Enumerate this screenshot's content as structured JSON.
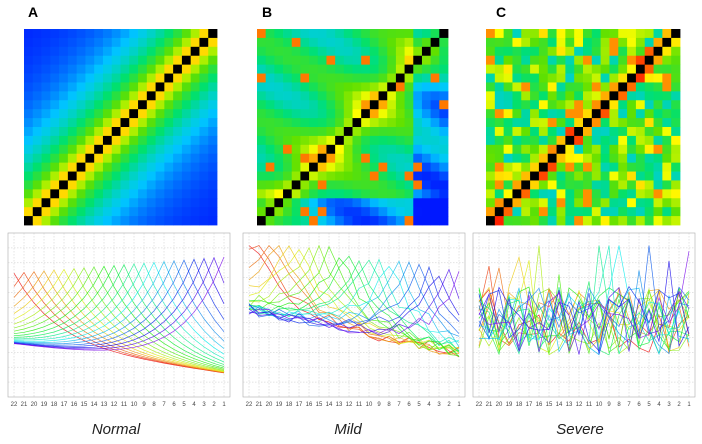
{
  "panels": [
    {
      "letter": "A",
      "caption": "Normal",
      "pattern": "normal"
    },
    {
      "letter": "B",
      "caption": "Mild",
      "pattern": "mild"
    },
    {
      "letter": "C",
      "caption": "Severe",
      "pattern": "severe"
    }
  ],
  "axis_ticks": [
    "22",
    "21",
    "20",
    "19",
    "18",
    "17",
    "16",
    "15",
    "14",
    "13",
    "12",
    "11",
    "10",
    "9",
    "8",
    "7",
    "6",
    "5",
    "4",
    "3",
    "2",
    "1"
  ],
  "matrix_size": 22,
  "colors": {
    "diagonal": "#000000",
    "gridline": "#c8c8c8",
    "colormap": [
      "#0018ff",
      "#00c8ff",
      "#00e070",
      "#60e000",
      "#ffff00",
      "#ff2000"
    ]
  }
}
